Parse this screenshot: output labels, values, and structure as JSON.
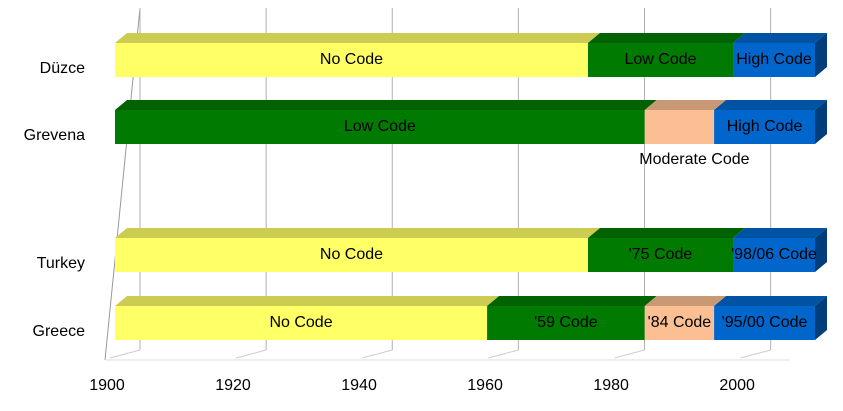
{
  "chart_data": {
    "type": "bar",
    "orientation": "horizontal",
    "stacked": true,
    "categories": [
      "Düzce",
      "Grevena",
      "Turkey",
      "Greece"
    ],
    "rows": [
      {
        "segments": [
          {
            "label": "No Code",
            "value": 75,
            "color": "#ffff66"
          },
          {
            "label": "Low Code",
            "value": 23,
            "color": "#007a00"
          },
          {
            "label": "High Code",
            "value": 13,
            "color": "#0066cc"
          }
        ]
      },
      {
        "segments": [
          {
            "label": "Low Code",
            "value": 84,
            "color": "#007a00"
          },
          {
            "label": "Moderate Code",
            "value": 11,
            "color": "#fbbf93",
            "label_below": true
          },
          {
            "label": "High Code",
            "value": 16,
            "color": "#0066cc"
          }
        ]
      },
      {
        "segments": [
          {
            "label": "No Code",
            "value": 75,
            "color": "#ffff66"
          },
          {
            "label": "'75 Code",
            "value": 23,
            "color": "#007a00"
          },
          {
            "label": "'98/06 Code",
            "value": 13,
            "color": "#0066cc"
          }
        ]
      },
      {
        "segments": [
          {
            "label": "No Code",
            "value": 59,
            "color": "#ffff66"
          },
          {
            "label": "'59 Code",
            "value": 25,
            "color": "#007a00"
          },
          {
            "label": "'84 Code",
            "value": 11,
            "color": "#fbbf93"
          },
          {
            "label": "'95/00 Code",
            "value": 16,
            "color": "#0066cc"
          }
        ]
      }
    ],
    "xlim": [
      1900,
      2011
    ],
    "xticks": [
      1900,
      1920,
      1940,
      1960,
      1980,
      2000
    ],
    "grid": true
  }
}
